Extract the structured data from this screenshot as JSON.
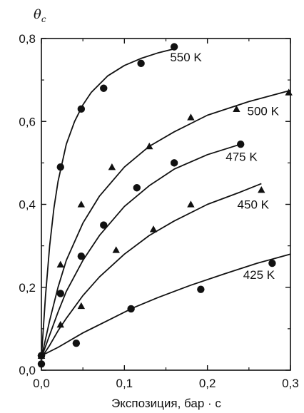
{
  "chart_data": {
    "type": "scatter",
    "title": "",
    "ylabel": "θ",
    "ylabel_subscript": "c",
    "xlabel": "Экспозиция, бар · с",
    "xlim": [
      0.0,
      0.3
    ],
    "ylim": [
      0.0,
      0.8
    ],
    "xticks": [
      0.0,
      0.1,
      0.2,
      0.3
    ],
    "yticks": [
      0.0,
      0.2,
      0.4,
      0.6,
      0.8
    ],
    "xtick_labels": [
      "0,0",
      "0,1",
      "0,2",
      "0,3"
    ],
    "ytick_labels": [
      "0,0",
      "0,2",
      "0,4",
      "0,6",
      "0,8"
    ],
    "grid": false,
    "series": [
      {
        "name": "550 K",
        "marker": "circle",
        "points": [
          [
            0.0,
            0.035
          ],
          [
            0.023,
            0.49
          ],
          [
            0.048,
            0.63
          ],
          [
            0.075,
            0.68
          ],
          [
            0.12,
            0.74
          ],
          [
            0.16,
            0.78
          ]
        ],
        "curve": [
          [
            0.0,
            0.03
          ],
          [
            0.005,
            0.18
          ],
          [
            0.01,
            0.3
          ],
          [
            0.015,
            0.39
          ],
          [
            0.02,
            0.455
          ],
          [
            0.03,
            0.545
          ],
          [
            0.04,
            0.6
          ],
          [
            0.05,
            0.64
          ],
          [
            0.06,
            0.67
          ],
          [
            0.08,
            0.71
          ],
          [
            0.1,
            0.735
          ],
          [
            0.12,
            0.752
          ],
          [
            0.14,
            0.765
          ],
          [
            0.16,
            0.775
          ]
        ]
      },
      {
        "name": "500 K",
        "marker": "triangle",
        "points": [
          [
            0.0,
            0.035
          ],
          [
            0.023,
            0.255
          ],
          [
            0.048,
            0.4
          ],
          [
            0.085,
            0.49
          ],
          [
            0.13,
            0.54
          ],
          [
            0.18,
            0.61
          ],
          [
            0.235,
            0.63
          ],
          [
            0.298,
            0.67
          ]
        ],
        "curve": [
          [
            0.0,
            0.03
          ],
          [
            0.01,
            0.12
          ],
          [
            0.02,
            0.2
          ],
          [
            0.03,
            0.265
          ],
          [
            0.05,
            0.355
          ],
          [
            0.07,
            0.42
          ],
          [
            0.1,
            0.49
          ],
          [
            0.13,
            0.54
          ],
          [
            0.16,
            0.575
          ],
          [
            0.2,
            0.615
          ],
          [
            0.25,
            0.648
          ],
          [
            0.3,
            0.675
          ]
        ]
      },
      {
        "name": "475 K",
        "marker": "circle",
        "points": [
          [
            0.0,
            0.035
          ],
          [
            0.023,
            0.185
          ],
          [
            0.048,
            0.275
          ],
          [
            0.075,
            0.35
          ],
          [
            0.115,
            0.44
          ],
          [
            0.16,
            0.5
          ],
          [
            0.24,
            0.545
          ]
        ],
        "curve": [
          [
            0.0,
            0.03
          ],
          [
            0.01,
            0.085
          ],
          [
            0.02,
            0.14
          ],
          [
            0.03,
            0.19
          ],
          [
            0.05,
            0.265
          ],
          [
            0.07,
            0.325
          ],
          [
            0.1,
            0.395
          ],
          [
            0.13,
            0.445
          ],
          [
            0.16,
            0.485
          ],
          [
            0.2,
            0.52
          ],
          [
            0.24,
            0.545
          ]
        ]
      },
      {
        "name": "450 K",
        "marker": "triangle",
        "points": [
          [
            0.0,
            0.035
          ],
          [
            0.023,
            0.11
          ],
          [
            0.048,
            0.155
          ],
          [
            0.09,
            0.29
          ],
          [
            0.135,
            0.34
          ],
          [
            0.18,
            0.4
          ],
          [
            0.265,
            0.435
          ]
        ],
        "curve": [
          [
            0.0,
            0.03
          ],
          [
            0.01,
            0.06
          ],
          [
            0.02,
            0.095
          ],
          [
            0.03,
            0.125
          ],
          [
            0.05,
            0.18
          ],
          [
            0.07,
            0.225
          ],
          [
            0.1,
            0.28
          ],
          [
            0.13,
            0.325
          ],
          [
            0.16,
            0.36
          ],
          [
            0.2,
            0.4
          ],
          [
            0.24,
            0.43
          ],
          [
            0.265,
            0.45
          ]
        ]
      },
      {
        "name": "425 K",
        "marker": "circle",
        "points": [
          [
            0.0,
            0.015
          ],
          [
            0.042,
            0.065
          ],
          [
            0.108,
            0.148
          ],
          [
            0.192,
            0.195
          ],
          [
            0.278,
            0.258
          ]
        ],
        "curve": [
          [
            0.0,
            0.035
          ],
          [
            0.02,
            0.055
          ],
          [
            0.05,
            0.09
          ],
          [
            0.08,
            0.12
          ],
          [
            0.11,
            0.15
          ],
          [
            0.14,
            0.175
          ],
          [
            0.18,
            0.205
          ],
          [
            0.22,
            0.232
          ],
          [
            0.26,
            0.258
          ],
          [
            0.3,
            0.28
          ]
        ]
      }
    ]
  }
}
